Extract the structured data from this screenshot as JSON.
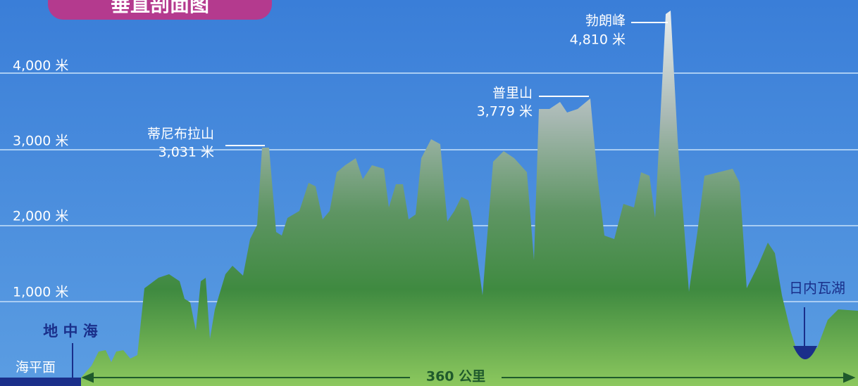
{
  "title": "垂直剖面图",
  "elevation_labels": [
    "4,000 米",
    "3,000 米",
    "2,000 米",
    "1,000 米",
    "海平面"
  ],
  "peaks": [
    {
      "name": "蒂尼布拉山",
      "height": "3,031 米"
    },
    {
      "name": "普里山",
      "height": "3,779 米"
    },
    {
      "name": "勃朗峰",
      "height": "4,810 米"
    }
  ],
  "water": [
    "地 中 海",
    "日内瓦湖"
  ],
  "distance": "360 公里"
}
